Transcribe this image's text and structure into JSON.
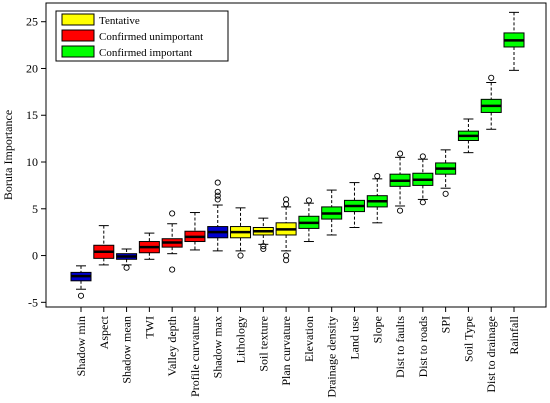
{
  "chart_data": {
    "type": "boxplot",
    "title": "",
    "xlabel": "",
    "ylabel": "Boruta Importance",
    "ylim": [
      -5.5,
      27
    ],
    "yticks": [
      -5,
      0,
      5,
      10,
      15,
      20,
      25
    ],
    "grid": false,
    "legend": {
      "placement": "top-left",
      "entries": [
        {
          "label": "Tentative",
          "color": "#ffff00"
        },
        {
          "label": "Confirmed unimportant",
          "color": "#ff0000"
        },
        {
          "label": "Confirmed important",
          "color": "#00ff00"
        }
      ]
    },
    "boxes": [
      {
        "label": "Shadow min",
        "status": "shadow",
        "color": "#0000cd",
        "min": -3.6,
        "q1": -2.7,
        "median": -2.2,
        "q3": -1.8,
        "max": -1.1,
        "outliers": [
          -4.3
        ]
      },
      {
        "label": "Aspect",
        "status": "Confirmed unimportant",
        "color": "#ff0000",
        "min": -1.0,
        "q1": -0.3,
        "median": 0.4,
        "q3": 1.1,
        "max": 3.2,
        "outliers": []
      },
      {
        "label": "Shadow mean",
        "status": "shadow",
        "color": "#0000cd",
        "min": -1.0,
        "q1": -0.4,
        "median": -0.1,
        "q3": 0.2,
        "max": 0.7,
        "outliers": [
          -1.3
        ]
      },
      {
        "label": "TWI",
        "status": "Confirmed unimportant",
        "color": "#ff0000",
        "min": -0.4,
        "q1": 0.3,
        "median": 0.9,
        "q3": 1.5,
        "max": 2.4,
        "outliers": []
      },
      {
        "label": "Valley depth",
        "status": "Confirmed unimportant",
        "color": "#ff0000",
        "min": 0.2,
        "q1": 0.9,
        "median": 1.4,
        "q3": 1.8,
        "max": 3.4,
        "outliers": [
          -1.5,
          4.5
        ]
      },
      {
        "label": "Profile curvature",
        "status": "Confirmed unimportant",
        "color": "#ff0000",
        "min": 0.6,
        "q1": 1.5,
        "median": 2.0,
        "q3": 2.6,
        "max": 4.6,
        "outliers": []
      },
      {
        "label": "Shadow max",
        "status": "shadow",
        "color": "#0000cd",
        "min": 0.5,
        "q1": 1.9,
        "median": 2.5,
        "q3": 3.1,
        "max": 5.4,
        "outliers": [
          6.0,
          6.4,
          6.8,
          7.8
        ]
      },
      {
        "label": "Lithology",
        "status": "Tentative",
        "color": "#ffff00",
        "min": 0.5,
        "q1": 1.9,
        "median": 2.5,
        "q3": 3.1,
        "max": 5.1,
        "outliers": [
          0.0
        ]
      },
      {
        "label": "Soil texture",
        "status": "Tentative",
        "color": "#ffff00",
        "min": 1.2,
        "q1": 2.2,
        "median": 2.6,
        "q3": 3.0,
        "max": 4.0,
        "outliers": [
          0.7,
          1.0
        ]
      },
      {
        "label": "Plan curvature",
        "status": "Tentative",
        "color": "#ffff00",
        "min": 0.5,
        "q1": 2.2,
        "median": 2.8,
        "q3": 3.5,
        "max": 5.2,
        "outliers": [
          -0.5,
          0.0,
          5.5,
          6.0
        ]
      },
      {
        "label": "Elevation",
        "status": "Confirmed important",
        "color": "#00ff00",
        "min": 1.5,
        "q1": 2.9,
        "median": 3.5,
        "q3": 4.2,
        "max": 5.6,
        "outliers": [
          5.9
        ]
      },
      {
        "label": "Drainage density",
        "status": "Confirmed important",
        "color": "#00ff00",
        "min": 2.2,
        "q1": 3.9,
        "median": 4.5,
        "q3": 5.2,
        "max": 7.0,
        "outliers": []
      },
      {
        "label": "Land use",
        "status": "Confirmed important",
        "color": "#00ff00",
        "min": 3.0,
        "q1": 4.7,
        "median": 5.3,
        "q3": 5.9,
        "max": 7.8,
        "outliers": []
      },
      {
        "label": "Slope",
        "status": "Confirmed important",
        "color": "#00ff00",
        "min": 3.5,
        "q1": 5.2,
        "median": 5.8,
        "q3": 6.4,
        "max": 8.2,
        "outliers": [
          8.5
        ]
      },
      {
        "label": "Dist to faults",
        "status": "Confirmed important",
        "color": "#00ff00",
        "min": 5.3,
        "q1": 7.4,
        "median": 8.0,
        "q3": 8.7,
        "max": 10.5,
        "outliers": [
          4.8,
          10.9
        ]
      },
      {
        "label": "Dist to roads",
        "status": "Confirmed important",
        "color": "#00ff00",
        "min": 6.0,
        "q1": 7.5,
        "median": 8.1,
        "q3": 8.8,
        "max": 10.3,
        "outliers": [
          5.7,
          10.6
        ]
      },
      {
        "label": "SPI",
        "status": "Confirmed important",
        "color": "#00ff00",
        "min": 7.2,
        "q1": 8.7,
        "median": 9.3,
        "q3": 9.9,
        "max": 11.3,
        "outliers": [
          6.6
        ]
      },
      {
        "label": "Soil Type",
        "status": "Confirmed important",
        "color": "#00ff00",
        "min": 11.0,
        "q1": 12.3,
        "median": 12.8,
        "q3": 13.3,
        "max": 14.6,
        "outliers": []
      },
      {
        "label": "Dist to drainage",
        "status": "Confirmed important",
        "color": "#00ff00",
        "min": 13.5,
        "q1": 15.3,
        "median": 16.0,
        "q3": 16.7,
        "max": 18.5,
        "outliers": [
          19.0
        ]
      },
      {
        "label": "Rainfall",
        "status": "Confirmed important",
        "color": "#00ff00",
        "min": 19.8,
        "q1": 22.3,
        "median": 23.0,
        "q3": 23.8,
        "max": 26.0,
        "outliers": []
      }
    ]
  }
}
